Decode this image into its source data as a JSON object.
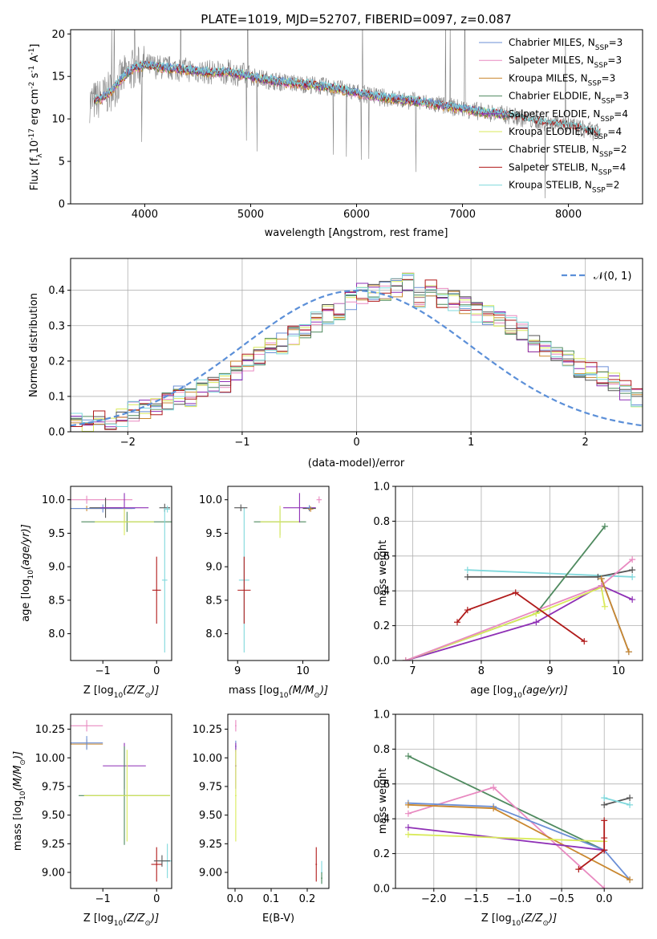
{
  "figure_title": "PLATE=1019, MJD=52707, FIBERID=0097, z=0.087",
  "colors": {
    "Chabrier MILES": "#6b8fd6",
    "Salpeter MILES": "#e889c0",
    "Kroupa MILES": "#c9872e",
    "Chabrier ELODIE": "#4f8a5f",
    "Salpeter ELODIE": "#8e2fb5",
    "Kroupa ELODIE": "#d9ea5b",
    "Chabrier STELIB": "#555555",
    "Salpeter STELIB": "#b01a1a",
    "Kroupa STELIB": "#7fd8dc",
    "Kroupa ELODIE pt": "#d4e64a",
    "spectrum": "#808080",
    "normal": "#5b8fd8"
  },
  "chart_data": [
    {
      "type": "line",
      "title": "PLATE=1019, MJD=52707, FIBERID=0097, z=0.087",
      "xlabel": "wavelength [Angstrom, rest frame]",
      "ylabel": "Flux [f",
      "ylabel_parts": [
        "Flux [f",
        "λ",
        "10",
        "-17",
        " erg cm",
        "-2",
        " s",
        "-1",
        " A",
        "-1",
        "]"
      ],
      "xlim": [
        3300,
        8700
      ],
      "ylim": [
        0,
        20.5
      ],
      "xticks": [
        4000,
        5000,
        6000,
        7000,
        8000
      ],
      "yticks": [
        0,
        5,
        10,
        15,
        20
      ],
      "grid": false,
      "legend_position": "top-right",
      "legend": [
        {
          "label": "Chabrier MILES, N",
          "sub": "SSP",
          "suffix": "=3",
          "key": "Chabrier MILES"
        },
        {
          "label": "Salpeter MILES, N",
          "sub": "SSP",
          "suffix": "=3",
          "key": "Salpeter MILES"
        },
        {
          "label": "Kroupa MILES, N",
          "sub": "SSP",
          "suffix": "=3",
          "key": "Kroupa MILES"
        },
        {
          "label": "Chabrier ELODIE, N",
          "sub": "SSP",
          "suffix": "=3",
          "key": "Chabrier ELODIE"
        },
        {
          "label": "Salpeter ELODIE, N",
          "sub": "SSP",
          "suffix": "=4",
          "key": "Salpeter ELODIE"
        },
        {
          "label": "Kroupa ELODIE, N",
          "sub": "SSP",
          "suffix": "=4",
          "key": "Kroupa ELODIE"
        },
        {
          "label": "Chabrier STELIB, N",
          "sub": "SSP",
          "suffix": "=2",
          "key": "Chabrier STELIB"
        },
        {
          "label": "Salpeter STELIB, N",
          "sub": "SSP",
          "suffix": "=4",
          "key": "Salpeter STELIB"
        },
        {
          "label": "Kroupa STELIB, N",
          "sub": "SSP",
          "suffix": "=2",
          "key": "Kroupa STELIB"
        }
      ],
      "spectrum_envelope": {
        "x": [
          3500,
          3600,
          3700,
          3800,
          3900,
          4000,
          4200,
          4400,
          4600,
          4800,
          5000,
          5200,
          5400,
          5600,
          5800,
          6000,
          6200,
          6400,
          6600,
          6800,
          7000,
          7200,
          7400,
          7600,
          7800,
          8000,
          8200,
          8300
        ],
        "y": [
          12.0,
          12.5,
          13.5,
          15.0,
          16.0,
          16.3,
          16.0,
          15.8,
          15.5,
          15.5,
          15.0,
          14.5,
          14.2,
          14.0,
          13.6,
          13.1,
          12.6,
          12.3,
          12.0,
          11.6,
          11.2,
          10.8,
          10.5,
          10.0,
          9.5,
          9.3,
          8.6,
          8.3
        ]
      }
    },
    {
      "type": "histogram",
      "xlabel": "(data-model)/error",
      "ylabel": "Normed distribution",
      "xlim": [
        -2.5,
        2.5
      ],
      "ylim": [
        0,
        0.49
      ],
      "xticks": [
        -2,
        -1,
        0,
        1,
        2
      ],
      "yticks": [
        0.0,
        0.1,
        0.2,
        0.3,
        0.4
      ],
      "grid": true,
      "legend_position": "top-right",
      "legend_label": "𝒩(0, 1)",
      "bin_width": 0.1,
      "bin_start": -2.5,
      "profile": [
        0.04,
        0.025,
        0.03,
        0.033,
        0.036,
        0.06,
        0.06,
        0.065,
        0.08,
        0.1,
        0.1,
        0.13,
        0.14,
        0.14,
        0.17,
        0.2,
        0.21,
        0.24,
        0.25,
        0.27,
        0.29,
        0.31,
        0.33,
        0.34,
        0.37,
        0.39,
        0.39,
        0.4,
        0.41,
        0.42,
        0.38,
        0.4,
        0.38,
        0.37,
        0.36,
        0.34,
        0.33,
        0.31,
        0.3,
        0.28,
        0.25,
        0.24,
        0.22,
        0.2,
        0.18,
        0.17,
        0.16,
        0.14,
        0.12,
        0.1,
        0.09,
        0.08,
        0.06,
        0.05,
        0.04,
        0.03,
        0.025,
        0.02,
        0.02,
        0.015
      ]
    },
    {
      "type": "errorbar",
      "xlabel": "Z [log",
      "xlabel_parts": [
        "Z [log",
        "10",
        "(Z/Z",
        "⊙",
        ")]"
      ],
      "ylabel": "age  [log",
      "ylabel_parts": [
        "age  [log",
        "10",
        "(age/yr)]"
      ],
      "xlim": [
        -1.6,
        0.28
      ],
      "ylim": [
        7.6,
        10.2
      ],
      "xticks": [
        -1,
        0
      ],
      "yticks": [
        8.0,
        8.5,
        9.0,
        9.5,
        10.0
      ],
      "points": [
        {
          "key": "Salpeter MILES",
          "x": -1.3,
          "y": 10.0,
          "xerr": 0.85,
          "yerr": 0.06
        },
        {
          "key": "Kroupa MILES",
          "x": -1.3,
          "y": 9.87,
          "xerr": 0.85,
          "yerr": 0.04
        },
        {
          "key": "Chabrier MILES",
          "x": -1.0,
          "y": 9.87,
          "xerr": 0.6,
          "yerr": 0.06
        },
        {
          "key": "Chabrier STELIB",
          "x": -0.95,
          "y": 9.88,
          "xerr": 0.3,
          "yerr": 0.15
        },
        {
          "key": "Salpeter ELODIE",
          "x": -0.6,
          "y": 9.88,
          "xerr": 0.45,
          "yerr": 0.22
        },
        {
          "key": "Chabrier ELODIE",
          "x": -0.55,
          "y": 9.67,
          "xerr": 0.85,
          "yerr": 0.15
        },
        {
          "key": "Kroupa ELODIE",
          "x": -0.6,
          "y": 9.67,
          "xerr": 0.55,
          "yerr": 0.2
        },
        {
          "key": "Salpeter STELIB",
          "x": 0.0,
          "y": 8.65,
          "xerr": 0.08,
          "yerr": 0.5
        },
        {
          "key": "Chabrier STELIB",
          "x": 0.15,
          "y": 9.88,
          "xerr": 0.1,
          "yerr": 0.06
        },
        {
          "key": "Kroupa STELIB",
          "x": 0.15,
          "y": 8.8,
          "xerr": 0.05,
          "yerr": 1.08
        },
        {
          "key": "Kroupa STELIB",
          "x": 0.2,
          "y": 9.86,
          "xerr": 0.05,
          "yerr": 0.05
        }
      ]
    },
    {
      "type": "errorbar",
      "xlabel": "mass [log",
      "xlabel_parts": [
        "mass [log",
        "10",
        "(M/M",
        "⊙",
        ")]"
      ],
      "ylabel": "",
      "xlim": [
        8.85,
        10.4
      ],
      "ylim": [
        7.6,
        10.2
      ],
      "xticks": [
        9,
        10
      ],
      "yticks": [
        8.0,
        8.5,
        9.0,
        9.5,
        10.0
      ],
      "points": [
        {
          "key": "Kroupa STELIB",
          "x": 9.1,
          "y": 8.8,
          "xerr": 0.08,
          "yerr": 1.08
        },
        {
          "key": "Chabrier STELIB",
          "x": 9.05,
          "y": 9.88,
          "xerr": 0.1,
          "yerr": 0.05
        },
        {
          "key": "Salpeter STELIB",
          "x": 9.1,
          "y": 8.65,
          "xerr": 0.1,
          "yerr": 0.5
        },
        {
          "key": "Chabrier ELODIE",
          "x": 9.65,
          "y": 9.67,
          "xerr": 0.4,
          "yerr": 0.2
        },
        {
          "key": "Kroupa ELODIE",
          "x": 9.65,
          "y": 9.67,
          "xerr": 0.3,
          "yerr": 0.24
        },
        {
          "key": "Salpeter ELODIE",
          "x": 9.95,
          "y": 9.88,
          "xerr": 0.25,
          "yerr": 0.22
        },
        {
          "key": "Chabrier STELIB",
          "x": 10.1,
          "y": 9.87,
          "xerr": 0.1,
          "yerr": 0.04
        },
        {
          "key": "Chabrier MILES",
          "x": 10.1,
          "y": 9.88,
          "xerr": 0.04,
          "yerr": 0.04
        },
        {
          "key": "Kroupa MILES",
          "x": 10.12,
          "y": 9.86,
          "xerr": 0.04,
          "yerr": 0.04
        },
        {
          "key": "Salpeter MILES",
          "x": 10.25,
          "y": 10.0,
          "xerr": 0.04,
          "yerr": 0.05
        }
      ]
    },
    {
      "type": "line",
      "xlabel": "age  [log",
      "xlabel_parts": [
        "age  [log",
        "10",
        "(age/yr)]"
      ],
      "ylabel": "mass weight",
      "xlim": [
        6.75,
        10.35
      ],
      "ylim": [
        0,
        1.0
      ],
      "xticks": [
        7,
        8,
        9,
        10
      ],
      "yticks": [
        0.0,
        0.2,
        0.4,
        0.6,
        0.8,
        1.0
      ],
      "grid": true,
      "series": [
        {
          "key": "Kroupa STELIB",
          "x": [
            7.8,
            10.2
          ],
          "y": [
            0.52,
            0.48
          ]
        },
        {
          "key": "Chabrier STELIB",
          "x": [
            7.8,
            9.7,
            10.2
          ],
          "y": [
            0.48,
            0.48,
            0.52
          ]
        },
        {
          "key": "Chabrier ELODIE",
          "x": [
            6.9,
            8.8,
            9.8
          ],
          "y": [
            0.0,
            0.27,
            0.77
          ]
        },
        {
          "key": "Salpeter ELODIE",
          "x": [
            6.9,
            8.8,
            9.75,
            10.2
          ],
          "y": [
            0.0,
            0.22,
            0.43,
            0.35
          ]
        },
        {
          "key": "Kroupa ELODIE",
          "x": [
            6.9,
            8.8,
            9.75,
            9.8
          ],
          "y": [
            0.0,
            0.27,
            0.42,
            0.31
          ]
        },
        {
          "key": "Salpeter MILES",
          "x": [
            6.9,
            9.75,
            10.2
          ],
          "y": [
            0.0,
            0.43,
            0.58
          ]
        },
        {
          "key": "Chabrier MILES",
          "x": [
            9.75,
            10.15
          ],
          "y": [
            0.47,
            0.05
          ]
        },
        {
          "key": "Kroupa MILES",
          "x": [
            9.75,
            10.15
          ],
          "y": [
            0.47,
            0.05
          ]
        },
        {
          "key": "Salpeter STELIB",
          "x": [
            7.65,
            7.8,
            8.5,
            9.5
          ],
          "y": [
            0.22,
            0.29,
            0.39,
            0.11
          ]
        }
      ]
    },
    {
      "type": "errorbar",
      "xlabel": "Z [log",
      "xlabel_parts": [
        "Z [log",
        "10",
        "(Z/Z",
        "⊙",
        ")]"
      ],
      "ylabel": "mass [log",
      "ylabel_parts": [
        "mass [log",
        "10",
        "(M/M",
        "⊙",
        ")]"
      ],
      "xlim": [
        -1.6,
        0.28
      ],
      "ylim": [
        8.86,
        10.38
      ],
      "xticks": [
        -1,
        0
      ],
      "yticks": [
        9.0,
        9.25,
        9.5,
        9.75,
        10.0,
        10.25
      ],
      "points": [
        {
          "key": "Salpeter MILES",
          "x": -1.3,
          "y": 10.28,
          "xerr": 0.3,
          "yerr": 0.05
        },
        {
          "key": "Kroupa MILES",
          "x": -1.3,
          "y": 10.12,
          "xerr": 0.3,
          "yerr": 0.04
        },
        {
          "key": "Chabrier MILES",
          "x": -1.3,
          "y": 10.13,
          "xerr": 0.3,
          "yerr": 0.06
        },
        {
          "key": "Salpeter ELODIE",
          "x": -0.6,
          "y": 9.93,
          "xerr": 0.4,
          "yerr": 0.2
        },
        {
          "key": "Chabrier ELODIE",
          "x": -0.6,
          "y": 9.67,
          "xerr": 0.85,
          "yerr": 0.43
        },
        {
          "key": "Kroupa ELODIE",
          "x": -0.55,
          "y": 9.67,
          "xerr": 0.8,
          "yerr": 0.4
        },
        {
          "key": "Salpeter STELIB",
          "x": 0.0,
          "y": 9.07,
          "xerr": 0.1,
          "yerr": 0.15
        },
        {
          "key": "Kroupa STELIB",
          "x": 0.2,
          "y": 9.1,
          "xerr": 0.1,
          "yerr": 0.15
        },
        {
          "key": "Chabrier STELIB",
          "x": 0.1,
          "y": 9.1,
          "xerr": 0.15,
          "yerr": 0.05
        }
      ]
    },
    {
      "type": "errorbar",
      "xlabel": "E(B-V)",
      "ylabel": "",
      "xlim": [
        -0.02,
        0.26
      ],
      "ylim": [
        8.86,
        10.38
      ],
      "xticks": [
        0.0,
        0.1,
        0.2
      ],
      "xtick_labels": [
        "0.0",
        "0.1",
        "0.2"
      ],
      "yticks": [
        9.0,
        9.25,
        9.5,
        9.75,
        10.0,
        10.25
      ],
      "points": [
        {
          "key": "Salpeter MILES",
          "x": 0.002,
          "y": 10.28,
          "xerr": 0.002,
          "yerr": 0.05
        },
        {
          "key": "Chabrier MILES",
          "x": 0.002,
          "y": 10.1,
          "xerr": 0.002,
          "yerr": 0.05
        },
        {
          "key": "Salpeter ELODIE",
          "x": 0.002,
          "y": 9.93,
          "xerr": 0.002,
          "yerr": 0.2
        },
        {
          "key": "Kroupa ELODIE",
          "x": 0.002,
          "y": 9.67,
          "xerr": 0.002,
          "yerr": 0.4
        },
        {
          "key": "Salpeter STELIB",
          "x": 0.225,
          "y": 9.07,
          "xerr": 0.002,
          "yerr": 0.15
        },
        {
          "key": "Kroupa STELIB",
          "x": 0.24,
          "y": 9.0,
          "xerr": 0.002,
          "yerr": 0.1
        },
        {
          "key": "Chabrier ELODIE",
          "x": 0.24,
          "y": 8.95,
          "xerr": 0.002,
          "yerr": 0.05
        }
      ]
    },
    {
      "type": "line",
      "xlabel": "Z [log",
      "xlabel_parts": [
        "Z [log",
        "10",
        "(Z/Z",
        "⊙",
        ")]"
      ],
      "ylabel": "mass weight",
      "xlim": [
        -2.45,
        0.45
      ],
      "ylim": [
        0,
        1.0
      ],
      "xticks": [
        -2.0,
        -1.5,
        -1.0,
        -0.5,
        0.0
      ],
      "xtick_labels": [
        "−2.0",
        "−1.5",
        "−1.0",
        "−0.5",
        "0.0"
      ],
      "yticks": [
        0.0,
        0.2,
        0.4,
        0.6,
        0.8,
        1.0
      ],
      "grid": true,
      "series": [
        {
          "key": "Chabrier ELODIE",
          "x": [
            -2.3,
            0.0
          ],
          "y": [
            0.76,
            0.22
          ]
        },
        {
          "key": "Salpeter MILES",
          "x": [
            -2.3,
            -1.3,
            0.0
          ],
          "y": [
            0.43,
            0.58,
            0.0
          ]
        },
        {
          "key": "Chabrier MILES",
          "x": [
            -2.3,
            -1.3,
            0.0,
            0.3
          ],
          "y": [
            0.49,
            0.47,
            0.22,
            0.05
          ]
        },
        {
          "key": "Kroupa MILES",
          "x": [
            -2.3,
            -1.3,
            0.3
          ],
          "y": [
            0.48,
            0.46,
            0.05
          ]
        },
        {
          "key": "Salpeter ELODIE",
          "x": [
            -2.3,
            0.0
          ],
          "y": [
            0.35,
            0.22
          ]
        },
        {
          "key": "Kroupa ELODIE",
          "x": [
            -2.3,
            0.0
          ],
          "y": [
            0.31,
            0.27
          ]
        },
        {
          "key": "Chabrier STELIB",
          "x": [
            0.0,
            0.3
          ],
          "y": [
            0.48,
            0.52
          ]
        },
        {
          "key": "Kroupa STELIB",
          "x": [
            0.0,
            0.3
          ],
          "y": [
            0.52,
            0.48
          ]
        },
        {
          "key": "Salpeter STELIB",
          "x": [
            -0.3,
            0.0,
            0.0,
            0.0
          ],
          "y": [
            0.11,
            0.22,
            0.29,
            0.39
          ]
        }
      ]
    }
  ]
}
